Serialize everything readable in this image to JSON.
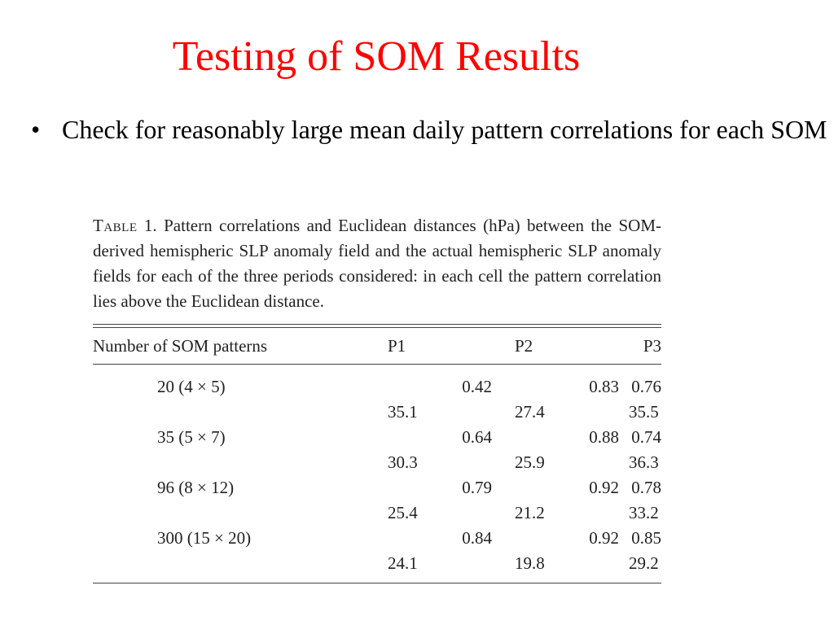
{
  "slide": {
    "title": "Testing of SOM Results",
    "bullets": [
      "Check for reasonably large mean daily pattern correlations for each SOM"
    ]
  },
  "table": {
    "caption_label": "Table",
    "caption_text": " 1. Pattern correlations and Euclidean distances (hPa) between the SOM-derived hemispheric SLP anomaly field and the actual hemispheric SLP anomaly fields for each of the three periods considered: in each cell the pattern correlation lies above the Euclidean distance.",
    "columns": [
      "Number of SOM patterns",
      "P1",
      "P2",
      "P3"
    ],
    "rows": [
      {
        "label": "20 (4 × 5)",
        "corr": [
          "0.42",
          "0.83",
          "0.76"
        ],
        "dist": [
          "35.1",
          "27.4",
          "35.5"
        ]
      },
      {
        "label": "35 (5 × 7)",
        "corr": [
          "0.64",
          "0.88",
          "0.74"
        ],
        "dist": [
          "30.3",
          "25.9",
          "36.3"
        ]
      },
      {
        "label": "96 (8 × 12)",
        "corr": [
          "0.79",
          "0.92",
          "0.78"
        ],
        "dist": [
          "25.4",
          "21.2",
          "33.2"
        ]
      },
      {
        "label": "300 (15 × 20)",
        "corr": [
          "0.84",
          "0.92",
          "0.85"
        ],
        "dist": [
          "24.1",
          "19.8",
          "29.2"
        ]
      }
    ]
  }
}
